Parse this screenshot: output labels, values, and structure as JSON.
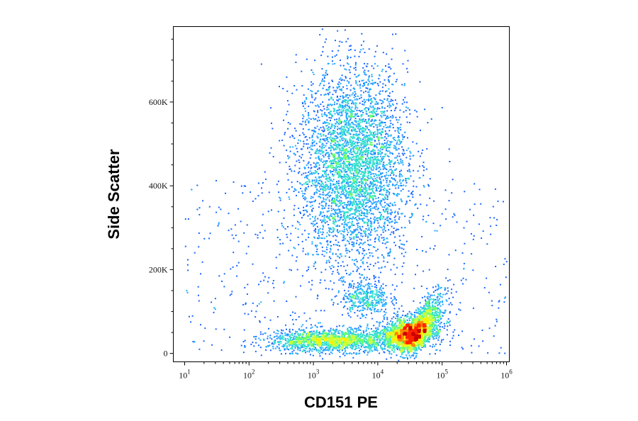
{
  "chart_data": {
    "type": "scatter",
    "subtype": "flow-cytometry-density-dot-plot",
    "xlabel": "CD151 PE",
    "ylabel": "Side Scatter",
    "x_scale": "log",
    "xlim": [
      10,
      1000000
    ],
    "ylim": [
      -20000,
      780000
    ],
    "x_ticks": [
      {
        "base": "10",
        "exp": "1",
        "value": 10
      },
      {
        "base": "10",
        "exp": "2",
        "value": 100
      },
      {
        "base": "10",
        "exp": "3",
        "value": 1000
      },
      {
        "base": "10",
        "exp": "4",
        "value": 10000
      },
      {
        "base": "10",
        "exp": "5",
        "value": 100000
      },
      {
        "base": "10",
        "exp": "6",
        "value": 1000000
      }
    ],
    "y_ticks": [
      {
        "label": "0",
        "value": 0
      },
      {
        "label": "200K",
        "value": 200000
      },
      {
        "label": "400K",
        "value": 400000
      },
      {
        "label": "600K",
        "value": 600000
      }
    ],
    "grid": false,
    "legend": "none",
    "density_colors": [
      "#0000cc",
      "#1a66ff",
      "#22aaff",
      "#33e0cc",
      "#66ff66",
      "#ccff33",
      "#ffee00",
      "#ff8800",
      "#ff2200",
      "#cc0000"
    ],
    "populations": [
      {
        "name_hint": "high SSC cluster",
        "x_center": 4000,
        "x_log_spread": 0.42,
        "y_center": 450000,
        "y_spread": 115000,
        "relative_count": 0.45
      },
      {
        "name_hint": "mid SSC cluster",
        "x_center": 6500,
        "x_log_spread": 0.18,
        "y_center": 135000,
        "y_spread": 22000,
        "relative_count": 0.04
      },
      {
        "name_hint": "low SSC tail",
        "x_center": 2000,
        "x_log_spread": 0.5,
        "y_center": 32000,
        "y_spread": 13000,
        "relative_count": 0.18
      },
      {
        "name_hint": "low SSC bright population",
        "x_center": 35000,
        "x_log_spread": 0.22,
        "y_center": 45000,
        "y_spread": 20000,
        "relative_count": 0.3
      }
    ]
  }
}
